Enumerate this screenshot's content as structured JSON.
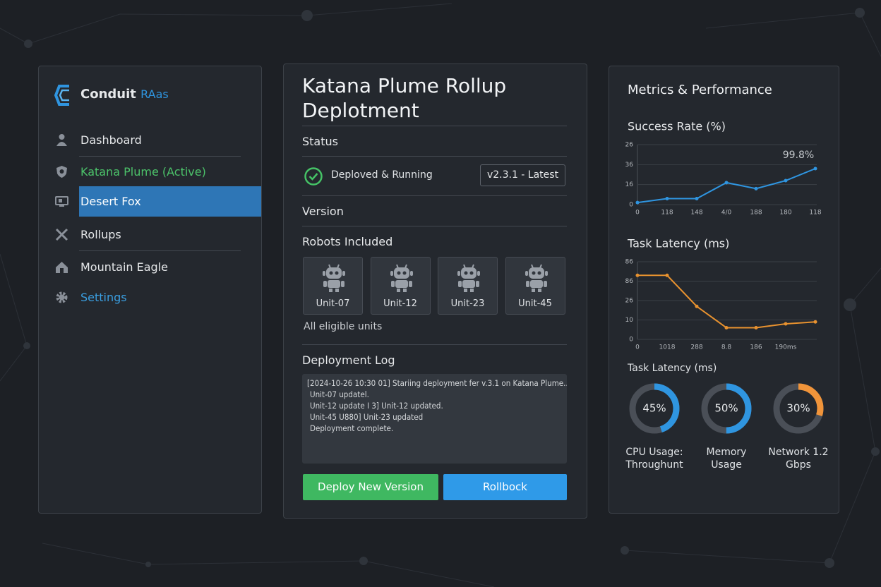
{
  "sidebar": {
    "brand": "Conduit",
    "brand_suffix": "RAas",
    "nav": [
      "Dashboard",
      "Katana Plume (Active)",
      "Desert Fox",
      "Rollups",
      "Mountain Eagle",
      "Settings"
    ]
  },
  "deployment": {
    "title": "Katana Plume Rollup Deplotment",
    "status_label": "Status",
    "status": "Deploved & Running",
    "version_badge": "v2.3.1 - Latest",
    "version_label": "Version",
    "robots_label": "Robots Included",
    "robots": [
      "Unit-07",
      "Unit-12",
      "Unit-23",
      "Unit-45"
    ],
    "robots_note": "All eligible units",
    "log_label": "Deployment Log",
    "log": [
      "[2024-10-26 10:30 01] Stariing deployment fer v.3.1 on Katana Plume...",
      "Unit-07 updatel.",
      "Unit-12 update I 3] Unit-12 updated.",
      "Unit-45 U880] Unit-23 updated",
      "Deployment complete."
    ],
    "buttons": [
      "Deploy New Version",
      "Rollbock"
    ]
  },
  "metrics": {
    "title": "Metrics & Performance",
    "chart_data": [
      {
        "type": "line",
        "title": "Success Rate (%)",
        "annotation": "99.8%",
        "categories": [
          "0",
          "118",
          "148",
          "4/0",
          "188",
          "180",
          "118"
        ],
        "values": [
          0.1,
          0.3,
          0.3,
          1.1,
          0.8,
          1.2,
          1.8
        ],
        "color": "#2f95e0",
        "markers": true,
        "ylim": [
          0,
          3
        ],
        "yticks": [
          0,
          {
            "value": 1,
            "label": "16"
          },
          {
            "value": 2,
            "label": "36"
          },
          {
            "value": 3,
            "label": "26"
          }
        ],
        "grid": true
      },
      {
        "type": "line",
        "title": "Task Latency (ms)",
        "categories": [
          "0",
          "1018",
          "288",
          "8.8",
          "186",
          "190ms",
          null
        ],
        "values": [
          3.3,
          3.3,
          1.7,
          0.6,
          0.6,
          0.8,
          0.9
        ],
        "color": "#e8922f",
        "markers": true,
        "ylim": [
          0,
          4
        ],
        "yticks": [
          0,
          {
            "value": 1,
            "label": "10"
          },
          {
            "value": 2,
            "label": "26"
          },
          {
            "value": 3,
            "label": "86"
          },
          {
            "value": 4,
            "label": "86"
          }
        ],
        "grid": true
      }
    ],
    "gauges": {
      "type": "donut",
      "title": "Task Latency (ms)",
      "items": [
        {
          "label": "CPU Usage: Throughunt",
          "value": 45,
          "value_label": "45%",
          "color": "#2f95e0"
        },
        {
          "label": "Memory Usage",
          "value": 50,
          "value_label": "50%",
          "color": "#2f95e0"
        },
        {
          "label": "Network 1.2 Gbps",
          "value": 30,
          "value_label": "30%",
          "color": "#f0943a"
        }
      ]
    }
  }
}
